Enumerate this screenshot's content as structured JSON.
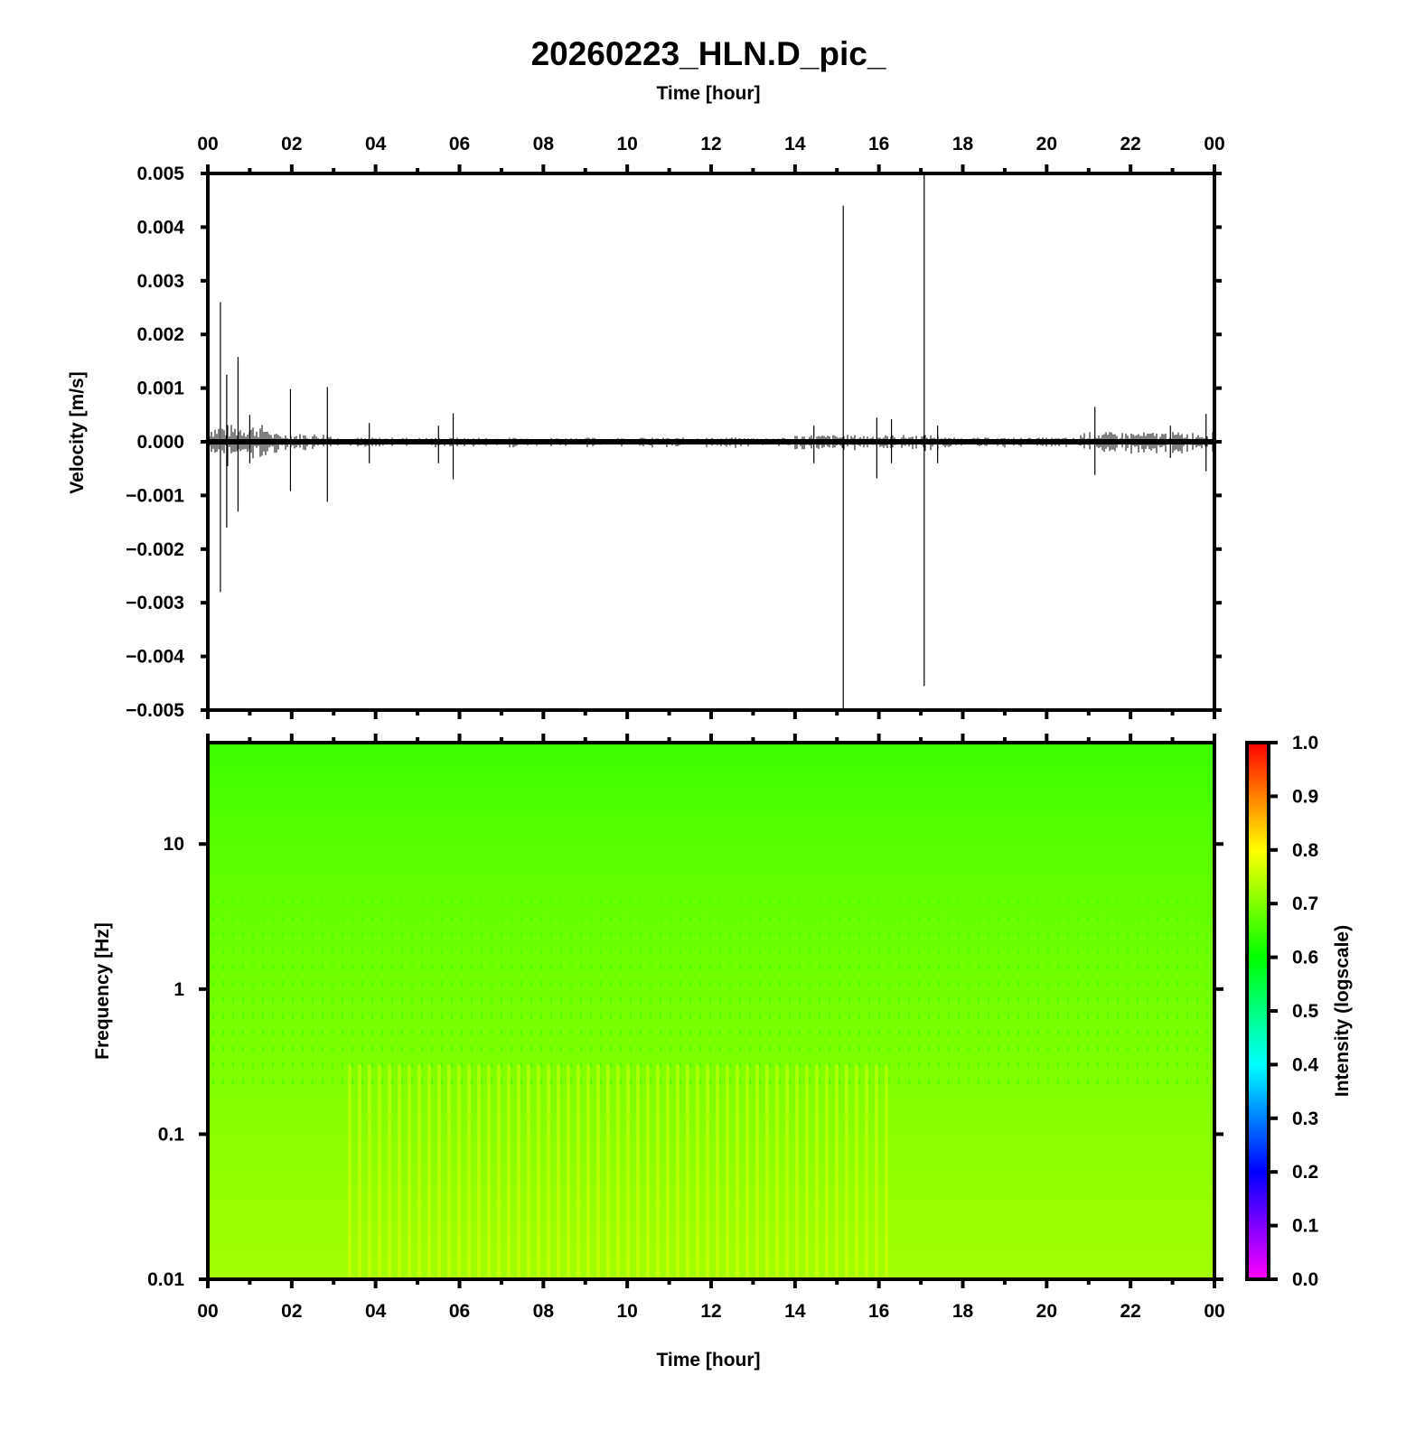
{
  "title": "20260223_HLN.D_pic_",
  "colors": {
    "trace": "#000000",
    "frame": "#000000",
    "background": "#ffffff",
    "colormap": [
      "#ff00ff",
      "#8000ff",
      "#0000ff",
      "#0080ff",
      "#00ffff",
      "#00ff80",
      "#00ff00",
      "#80ff00",
      "#ffff00",
      "#ff8000",
      "#ff0000"
    ]
  },
  "chart_data": [
    {
      "type": "line",
      "name": "velocity-trace",
      "title": "20260223_HLN.D_pic_",
      "xlabel": "Time [hour]",
      "ylabel": "Velocity [m/s]",
      "xlim": [
        0,
        24
      ],
      "ylim": [
        -0.005,
        0.005
      ],
      "x_ticks": [
        "00",
        "02",
        "04",
        "06",
        "08",
        "10",
        "12",
        "14",
        "16",
        "18",
        "20",
        "22",
        "00"
      ],
      "y_ticks": [
        "0.005",
        "0.004",
        "0.003",
        "0.002",
        "0.001",
        "0.000",
        "−0.001",
        "−0.002",
        "−0.003",
        "−0.004",
        "−0.005"
      ],
      "spikes": [
        {
          "t": 0.3,
          "max": 0.0026,
          "min": -0.0028
        },
        {
          "t": 0.45,
          "max": 0.00125,
          "min": -0.0016
        },
        {
          "t": 0.72,
          "max": 0.00158,
          "min": -0.0013
        },
        {
          "t": 1.0,
          "max": 0.0005,
          "min": -0.0004
        },
        {
          "t": 1.97,
          "max": 0.00098,
          "min": -0.00092
        },
        {
          "t": 2.85,
          "max": 0.00102,
          "min": -0.00112
        },
        {
          "t": 3.85,
          "max": 0.00035,
          "min": -0.0004
        },
        {
          "t": 5.5,
          "max": 0.0003,
          "min": -0.0004
        },
        {
          "t": 5.85,
          "max": 0.00053,
          "min": -0.0007
        },
        {
          "t": 14.45,
          "max": 0.0003,
          "min": -0.0004
        },
        {
          "t": 15.15,
          "max": 0.0044,
          "min": -0.005
        },
        {
          "t": 15.95,
          "max": 0.00045,
          "min": -0.00068
        },
        {
          "t": 16.3,
          "max": 0.00042,
          "min": -0.0004
        },
        {
          "t": 17.08,
          "max": 0.005,
          "min": -0.00455
        },
        {
          "t": 17.4,
          "max": 0.0003,
          "min": -0.0004
        },
        {
          "t": 21.15,
          "max": 0.00065,
          "min": -0.00062
        },
        {
          "t": 22.95,
          "max": 0.0003,
          "min": -0.0003
        },
        {
          "t": 23.8,
          "max": 0.00052,
          "min": -0.00055
        }
      ]
    },
    {
      "type": "heatmap",
      "name": "spectrogram",
      "xlabel": "Time [hour]",
      "ylabel": "Frequency [Hz]",
      "xlim": [
        0,
        24
      ],
      "ylim": [
        0.01,
        50
      ],
      "y_scale": "log",
      "x_ticks": [
        "00",
        "02",
        "04",
        "06",
        "08",
        "10",
        "12",
        "14",
        "16",
        "18",
        "20",
        "22",
        "00"
      ],
      "y_ticks": [
        "10",
        "1",
        "0.1",
        "0.01"
      ],
      "intensity_by_frequency": [
        {
          "f": 50,
          "v": 0.64
        },
        {
          "f": 10,
          "v": 0.67
        },
        {
          "f": 3,
          "v": 0.68
        },
        {
          "f": 1,
          "v": 0.7
        },
        {
          "f": 0.3,
          "v": 0.71
        },
        {
          "f": 0.1,
          "v": 0.72
        },
        {
          "f": 0.01,
          "v": 0.73
        }
      ],
      "colorbar": {
        "label": "Intensity (logscale)",
        "range": [
          0.0,
          1.0
        ],
        "ticks": [
          "1.0",
          "0.9",
          "0.8",
          "0.7",
          "0.6",
          "0.5",
          "0.4",
          "0.3",
          "0.2",
          "0.1",
          "0.0"
        ]
      }
    }
  ]
}
